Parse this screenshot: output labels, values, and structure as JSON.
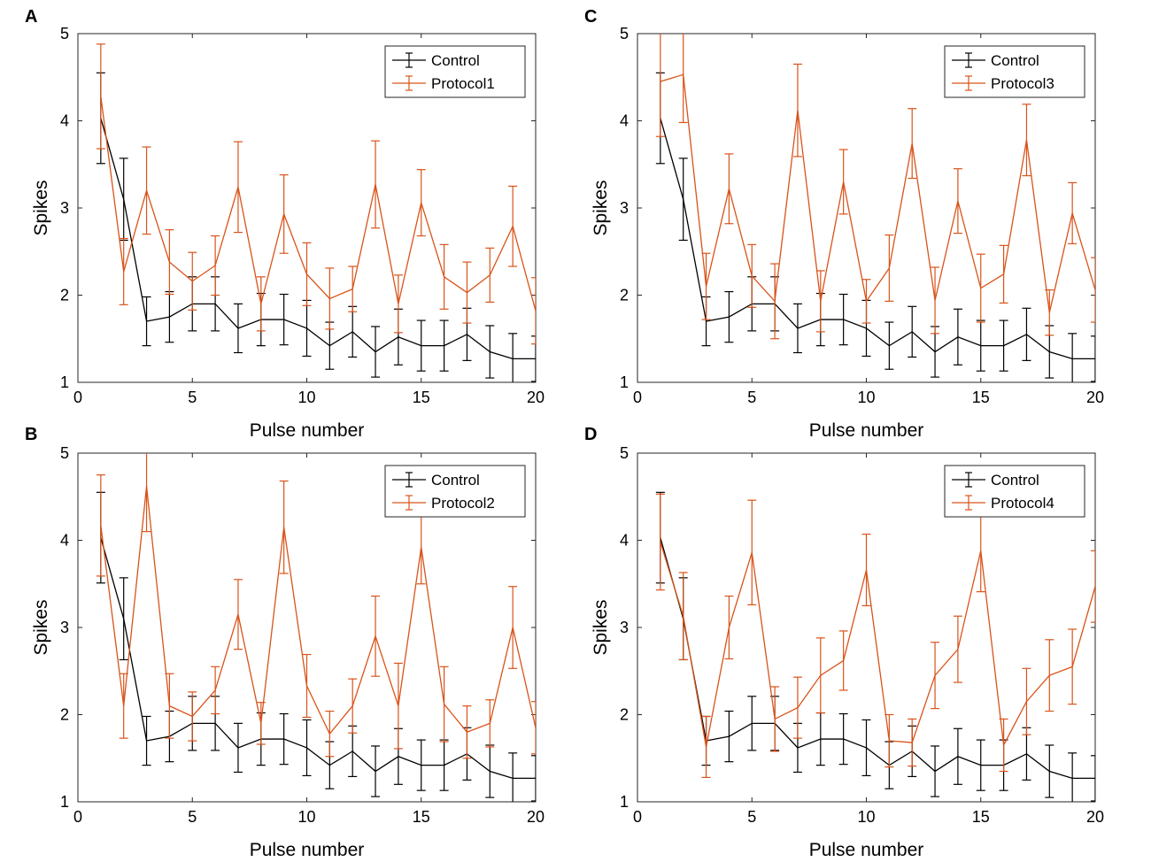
{
  "chart_data": [
    {
      "type": "line",
      "panel_label": "A",
      "xlabel": "Pulse number",
      "ylabel": "Spikes",
      "xlim": [
        0,
        20
      ],
      "ylim": [
        1,
        5
      ],
      "xticks": [
        0,
        5,
        10,
        15,
        20
      ],
      "yticks": [
        1,
        2,
        3,
        4,
        5
      ],
      "legend_position": "top-right",
      "x": [
        1,
        2,
        3,
        4,
        5,
        6,
        7,
        8,
        9,
        10,
        11,
        12,
        13,
        14,
        15,
        16,
        17,
        18,
        19,
        20
      ],
      "series": [
        {
          "name": "Control",
          "color": "#000000",
          "values": [
            4.03,
            3.1,
            1.7,
            1.75,
            1.9,
            1.9,
            1.62,
            1.72,
            1.72,
            1.62,
            1.42,
            1.58,
            1.35,
            1.52,
            1.42,
            1.42,
            1.55,
            1.35,
            1.27,
            1.27
          ],
          "errors": [
            0.52,
            0.47,
            0.28,
            0.29,
            0.31,
            0.31,
            0.28,
            0.3,
            0.29,
            0.32,
            0.27,
            0.29,
            0.29,
            0.32,
            0.29,
            0.29,
            0.3,
            0.3,
            0.29,
            0.26
          ]
        },
        {
          "name": "Protocol1",
          "color": "#d95319",
          "values": [
            4.28,
            2.27,
            3.2,
            2.38,
            2.16,
            2.34,
            3.24,
            1.9,
            2.93,
            2.24,
            1.96,
            2.07,
            3.27,
            1.9,
            3.06,
            2.21,
            2.03,
            2.23,
            2.79,
            1.82
          ],
          "errors": [
            0.6,
            0.38,
            0.5,
            0.37,
            0.33,
            0.34,
            0.52,
            0.31,
            0.45,
            0.36,
            0.35,
            0.26,
            0.5,
            0.33,
            0.38,
            0.37,
            0.35,
            0.31,
            0.46,
            0.38
          ]
        }
      ]
    },
    {
      "type": "line",
      "panel_label": "B",
      "xlabel": "Pulse number",
      "ylabel": "Spikes",
      "xlim": [
        0,
        20
      ],
      "ylim": [
        1,
        5
      ],
      "xticks": [
        0,
        5,
        10,
        15,
        20
      ],
      "yticks": [
        1,
        2,
        3,
        4,
        5
      ],
      "legend_position": "top-right",
      "x": [
        1,
        2,
        3,
        4,
        5,
        6,
        7,
        8,
        9,
        10,
        11,
        12,
        13,
        14,
        15,
        16,
        17,
        18,
        19,
        20
      ],
      "series": [
        {
          "name": "Control",
          "color": "#000000",
          "values": [
            4.03,
            3.1,
            1.7,
            1.75,
            1.9,
            1.9,
            1.62,
            1.72,
            1.72,
            1.62,
            1.42,
            1.58,
            1.35,
            1.52,
            1.42,
            1.42,
            1.55,
            1.35,
            1.27,
            1.27
          ],
          "errors": [
            0.52,
            0.47,
            0.28,
            0.29,
            0.31,
            0.31,
            0.28,
            0.3,
            0.29,
            0.32,
            0.27,
            0.29,
            0.29,
            0.32,
            0.29,
            0.29,
            0.3,
            0.3,
            0.29,
            0.26
          ]
        },
        {
          "name": "Protocol2",
          "color": "#d95319",
          "values": [
            4.17,
            2.1,
            4.62,
            2.1,
            1.98,
            2.28,
            3.15,
            1.9,
            4.15,
            2.33,
            1.78,
            2.1,
            2.9,
            2.1,
            3.92,
            2.12,
            1.8,
            1.9,
            3.0,
            1.85
          ],
          "errors": [
            0.58,
            0.37,
            0.52,
            0.37,
            0.28,
            0.27,
            0.4,
            0.24,
            0.53,
            0.36,
            0.26,
            0.31,
            0.46,
            0.49,
            0.42,
            0.43,
            0.3,
            0.27,
            0.47,
            0.3
          ]
        }
      ]
    },
    {
      "type": "line",
      "panel_label": "C",
      "xlabel": "Pulse number",
      "ylabel": "Spikes",
      "xlim": [
        0,
        20
      ],
      "ylim": [
        1,
        5
      ],
      "xticks": [
        0,
        5,
        10,
        15,
        20
      ],
      "yticks": [
        1,
        2,
        3,
        4,
        5
      ],
      "legend_position": "top-right",
      "x": [
        1,
        2,
        3,
        4,
        5,
        6,
        7,
        8,
        9,
        10,
        11,
        12,
        13,
        14,
        15,
        16,
        17,
        18,
        19,
        20
      ],
      "series": [
        {
          "name": "Control",
          "color": "#000000",
          "values": [
            4.03,
            3.1,
            1.7,
            1.75,
            1.9,
            1.9,
            1.62,
            1.72,
            1.72,
            1.62,
            1.42,
            1.58,
            1.35,
            1.52,
            1.42,
            1.42,
            1.55,
            1.35,
            1.27,
            1.27
          ],
          "errors": [
            0.52,
            0.47,
            0.28,
            0.29,
            0.31,
            0.31,
            0.28,
            0.3,
            0.29,
            0.32,
            0.27,
            0.29,
            0.29,
            0.32,
            0.29,
            0.29,
            0.3,
            0.3,
            0.29,
            0.26
          ]
        },
        {
          "name": "Protocol3",
          "color": "#d95319",
          "values": [
            4.45,
            4.53,
            2.1,
            3.22,
            2.22,
            1.93,
            4.12,
            1.93,
            3.3,
            1.93,
            2.31,
            3.74,
            1.94,
            3.08,
            2.08,
            2.24,
            3.78,
            1.8,
            2.94,
            2.06
          ],
          "errors": [
            0.63,
            0.55,
            0.38,
            0.4,
            0.36,
            0.43,
            0.53,
            0.35,
            0.37,
            0.25,
            0.38,
            0.4,
            0.38,
            0.37,
            0.39,
            0.33,
            0.41,
            0.26,
            0.35,
            0.37
          ]
        }
      ]
    },
    {
      "type": "line",
      "panel_label": "D",
      "xlabel": "Pulse number",
      "ylabel": "Spikes",
      "xlim": [
        0,
        20
      ],
      "ylim": [
        1,
        5
      ],
      "xticks": [
        0,
        5,
        10,
        15,
        20
      ],
      "yticks": [
        1,
        2,
        3,
        4,
        5
      ],
      "legend_position": "top-right",
      "x": [
        1,
        2,
        3,
        4,
        5,
        6,
        7,
        8,
        9,
        10,
        11,
        12,
        13,
        14,
        15,
        16,
        17,
        18,
        19,
        20
      ],
      "series": [
        {
          "name": "Control",
          "color": "#000000",
          "values": [
            4.03,
            3.1,
            1.7,
            1.75,
            1.9,
            1.9,
            1.62,
            1.72,
            1.72,
            1.62,
            1.42,
            1.58,
            1.35,
            1.52,
            1.42,
            1.42,
            1.55,
            1.35,
            1.27,
            1.27
          ],
          "errors": [
            0.52,
            0.47,
            0.28,
            0.29,
            0.31,
            0.31,
            0.28,
            0.3,
            0.29,
            0.32,
            0.27,
            0.29,
            0.29,
            0.32,
            0.29,
            0.29,
            0.3,
            0.3,
            0.29,
            0.26
          ]
        },
        {
          "name": "Protocol4",
          "color": "#d95319",
          "values": [
            3.98,
            3.13,
            1.63,
            3.0,
            3.86,
            1.95,
            2.08,
            2.45,
            2.62,
            3.66,
            1.7,
            1.68,
            2.45,
            2.75,
            3.88,
            1.65,
            2.15,
            2.45,
            2.55,
            3.47
          ],
          "errors": [
            0.55,
            0.5,
            0.35,
            0.36,
            0.6,
            0.37,
            0.35,
            0.43,
            0.34,
            0.41,
            0.3,
            0.27,
            0.38,
            0.38,
            0.47,
            0.3,
            0.38,
            0.41,
            0.43,
            0.41
          ]
        }
      ]
    }
  ]
}
